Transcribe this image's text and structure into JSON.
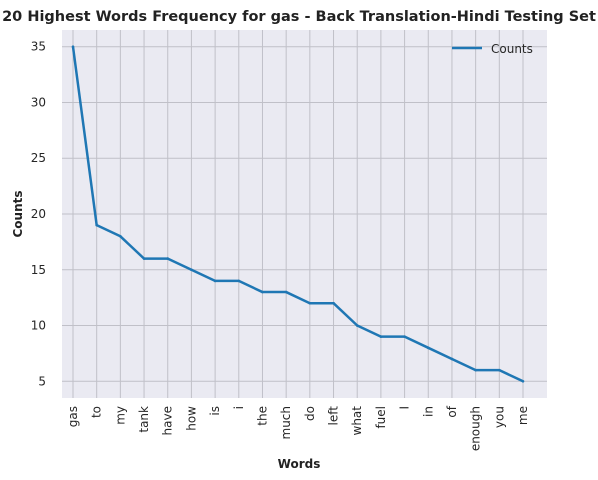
{
  "chart_data": {
    "type": "line",
    "title": "20 Highest Words Frequency for gas - Back Translation-Hindi Testing Set",
    "xlabel": "Words",
    "ylabel": "Counts",
    "categories": [
      "gas",
      "to",
      "my",
      "tank",
      "have",
      "how",
      "is",
      "i",
      "the",
      "much",
      "do",
      "left",
      "what",
      "fuel",
      "I",
      "in",
      "of",
      "enough",
      "you",
      "me"
    ],
    "series": [
      {
        "name": "Counts",
        "values": [
          35,
          19,
          18,
          16,
          16,
          15,
          14,
          14,
          13,
          13,
          12,
          12,
          10,
          9,
          9,
          8,
          7,
          6,
          6,
          5
        ],
        "color": "#1f77b4"
      }
    ],
    "y_ticks": [
      5,
      10,
      15,
      20,
      25,
      30,
      35
    ],
    "ylim": [
      3.5,
      36.5
    ],
    "grid": true,
    "legend_position": "top-right",
    "background_color": "#eaeaf2",
    "grid_color": "#c0c0c8"
  }
}
